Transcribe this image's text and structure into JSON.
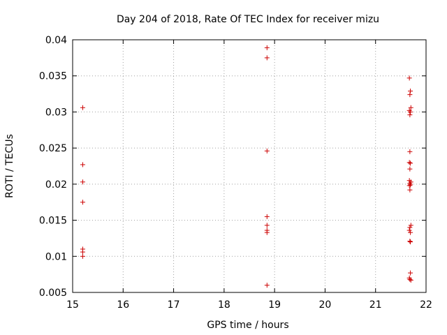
{
  "chart_data": {
    "type": "scatter",
    "title": "Day 204 of 2018, Rate Of TEC Index for receiver mizu",
    "xlabel": "GPS time / hours",
    "ylabel": "ROTI / TECUs",
    "xlim": [
      15,
      22
    ],
    "ylim": [
      0.005,
      0.04
    ],
    "x_ticks": [
      15,
      16,
      17,
      18,
      19,
      20,
      21,
      22
    ],
    "x_tick_labels": [
      "15",
      "16",
      "17",
      "18",
      "19",
      "20",
      "21",
      "22"
    ],
    "y_ticks": [
      0.005,
      0.01,
      0.015,
      0.02,
      0.025,
      0.03,
      0.035,
      0.04
    ],
    "y_tick_labels": [
      "0.005",
      "0.01",
      "0.015",
      "0.02",
      "0.025",
      "0.03",
      "0.035",
      "0.04"
    ],
    "grid": true,
    "marker": "+",
    "marker_color": "#cc0000",
    "series": [
      {
        "name": "ROTI",
        "points": [
          [
            15.2,
            0.0306
          ],
          [
            15.2,
            0.0227
          ],
          [
            15.2,
            0.0203
          ],
          [
            15.2,
            0.0175
          ],
          [
            15.2,
            0.011
          ],
          [
            15.2,
            0.0106
          ],
          [
            15.2,
            0.01
          ],
          [
            18.85,
            0.0389
          ],
          [
            18.85,
            0.0375
          ],
          [
            18.85,
            0.0246
          ],
          [
            18.85,
            0.0155
          ],
          [
            18.85,
            0.0143
          ],
          [
            18.85,
            0.0136
          ],
          [
            18.85,
            0.0133
          ],
          [
            18.85,
            0.006
          ],
          [
            21.67,
            0.0347
          ],
          [
            21.69,
            0.0329
          ],
          [
            21.68,
            0.0324
          ],
          [
            21.7,
            0.0306
          ],
          [
            21.67,
            0.0302
          ],
          [
            21.69,
            0.03
          ],
          [
            21.68,
            0.0296
          ],
          [
            21.68,
            0.0245
          ],
          [
            21.67,
            0.023
          ],
          [
            21.69,
            0.0229
          ],
          [
            21.68,
            0.0221
          ],
          [
            21.67,
            0.0205
          ],
          [
            21.7,
            0.0203
          ],
          [
            21.68,
            0.0201
          ],
          [
            21.69,
            0.0199
          ],
          [
            21.67,
            0.0198
          ],
          [
            21.68,
            0.0192
          ],
          [
            21.7,
            0.0143
          ],
          [
            21.68,
            0.014
          ],
          [
            21.67,
            0.0136
          ],
          [
            21.69,
            0.0133
          ],
          [
            21.68,
            0.0121
          ],
          [
            21.69,
            0.012
          ],
          [
            21.69,
            0.0077
          ],
          [
            21.67,
            0.007
          ],
          [
            21.68,
            0.0068
          ],
          [
            21.7,
            0.0067
          ]
        ]
      }
    ]
  }
}
